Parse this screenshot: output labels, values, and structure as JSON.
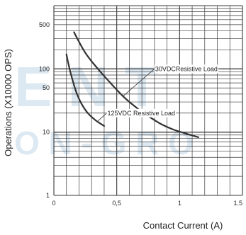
{
  "watermark": {
    "text_top": "E N T",
    "text_bottom": "O N - G R O",
    "color": "#c2d8e8"
  },
  "chart_data": {
    "type": "line",
    "title": "",
    "xlabel": "Contact Current (A)",
    "ylabel": "Operations (X10000 OPS)",
    "xlim": [
      0,
      1.5
    ],
    "ylim": [
      1,
      1000
    ],
    "yscale": "log",
    "grid": true,
    "x_ticks": [
      {
        "value": 0,
        "label": "0"
      },
      {
        "value": 0.5,
        "label": "0,5"
      },
      {
        "value": 1,
        "label": "1"
      },
      {
        "value": 1.5,
        "label": "1.5"
      }
    ],
    "y_ticks": [
      {
        "value": 1,
        "label": "1"
      },
      {
        "value": 10,
        "label": "10"
      },
      {
        "value": 50,
        "label": "50"
      },
      {
        "value": 100,
        "label": "100"
      },
      {
        "value": 500,
        "label": "500"
      }
    ],
    "series": [
      {
        "name": "30VDCResistive Load",
        "color": "#333333",
        "points": [
          [
            0.16,
            380
          ],
          [
            0.25,
            180
          ],
          [
            0.35,
            100
          ],
          [
            0.45,
            60
          ],
          [
            0.55,
            37
          ],
          [
            0.65,
            25
          ],
          [
            0.75,
            18
          ],
          [
            0.85,
            13.5
          ],
          [
            0.95,
            11
          ],
          [
            1.05,
            9.5
          ],
          [
            1.15,
            8.3
          ]
        ]
      },
      {
        "name": "125VDC Resistive Load",
        "color": "#333333",
        "points": [
          [
            0.1,
            170
          ],
          [
            0.12,
            110
          ],
          [
            0.15,
            65
          ],
          [
            0.18,
            42
          ],
          [
            0.22,
            28
          ],
          [
            0.27,
            20
          ],
          [
            0.33,
            15.5
          ],
          [
            0.4,
            12.5
          ]
        ]
      }
    ],
    "annotations": [
      {
        "series_index": 0,
        "text": "30VDCResistive Load",
        "at": [
          0.55,
          37
        ],
        "label_at": [
          0.8,
          100
        ]
      },
      {
        "series_index": 1,
        "text": "125VDC  Resistive Load",
        "at": [
          0.35,
          15
        ],
        "label_at": [
          0.42,
          20
        ]
      }
    ]
  }
}
